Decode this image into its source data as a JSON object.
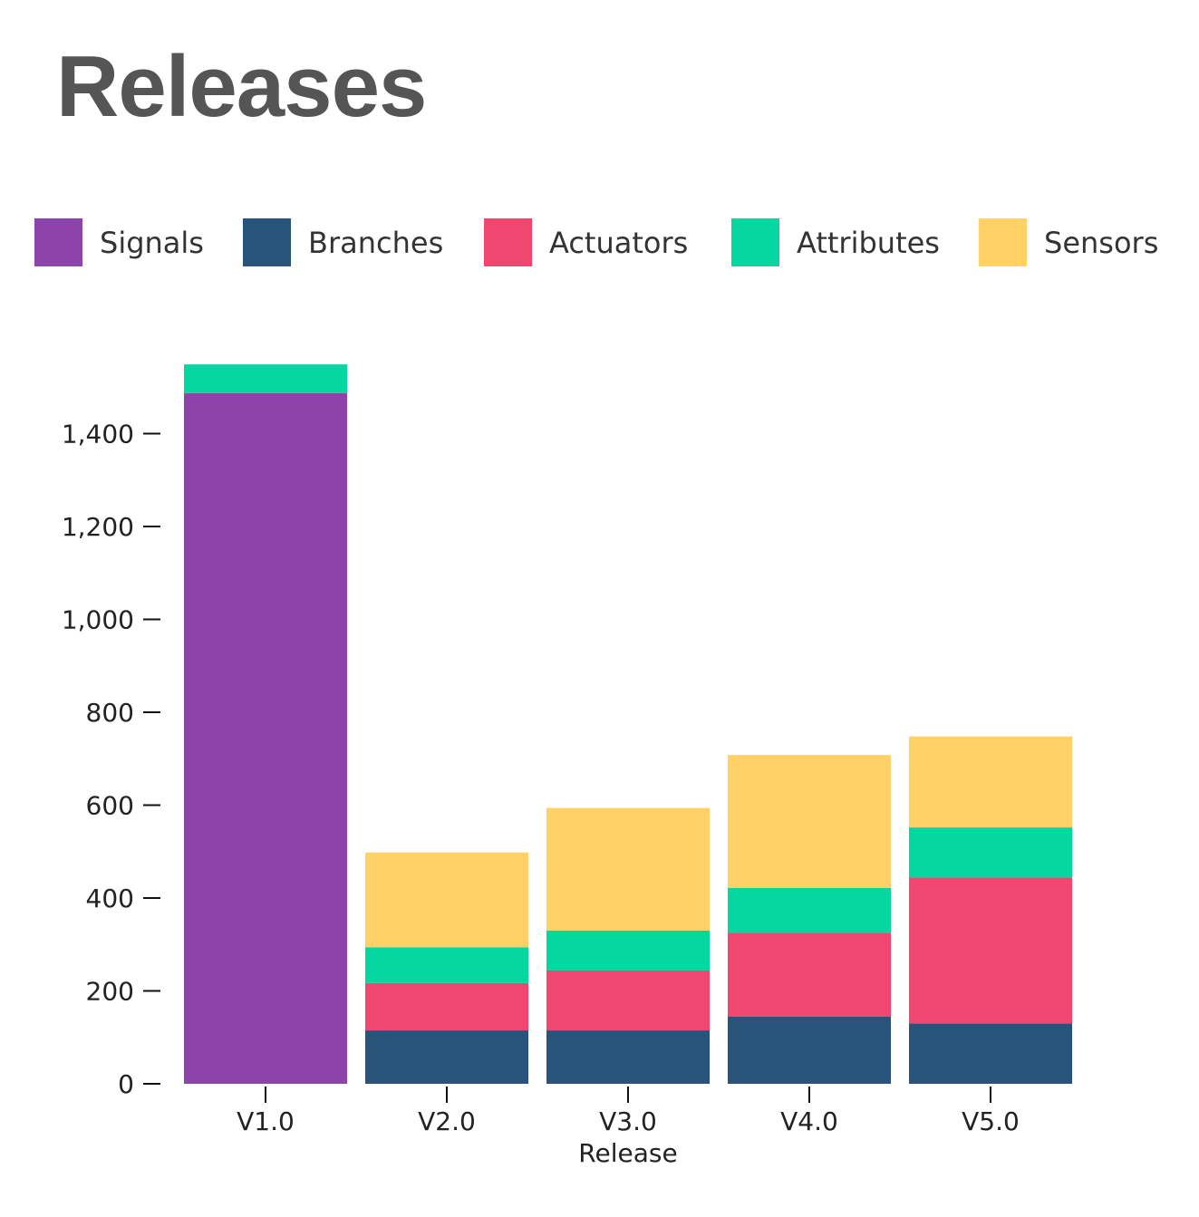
{
  "chart_data": {
    "type": "bar",
    "stacked": true,
    "title": "Releases",
    "xlabel": "Release",
    "ylabel": "",
    "ylim": [
      0,
      1550
    ],
    "yticks": [
      0,
      200,
      400,
      600,
      800,
      1000,
      1200,
      1400
    ],
    "ytick_labels": [
      "0",
      "200",
      "400",
      "600",
      "800",
      "1,000",
      "1,200",
      "1,400"
    ],
    "grid": false,
    "legend_position": "top",
    "categories": [
      "V1.0",
      "V2.0",
      "V3.0",
      "V4.0",
      "V5.0"
    ],
    "series": [
      {
        "name": "Signals",
        "color": "#8c44aa",
        "values": [
          1487,
          0,
          0,
          0,
          0
        ]
      },
      {
        "name": "Branches",
        "color": "#28547b",
        "values": [
          0,
          115,
          115,
          145,
          130
        ]
      },
      {
        "name": "Actuators",
        "color": "#ef476f",
        "values": [
          0,
          102,
          129,
          180,
          314
        ]
      },
      {
        "name": "Attributes",
        "color": "#06d6a0",
        "values": [
          62,
          77,
          86,
          97,
          108
        ]
      },
      {
        "name": "Sensors",
        "color": "#ffd166",
        "values": [
          0,
          204,
          264,
          286,
          196
        ]
      }
    ]
  }
}
